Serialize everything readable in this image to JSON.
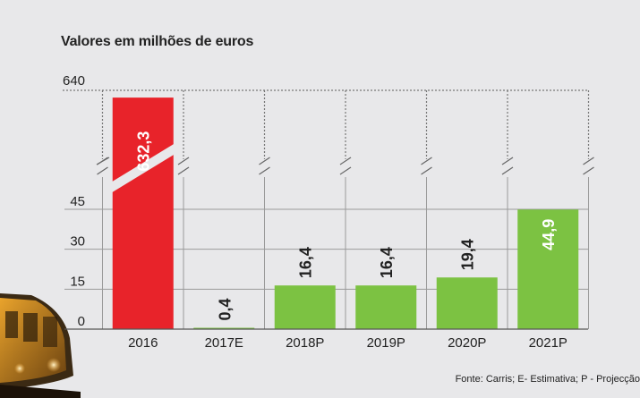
{
  "chart_data": {
    "type": "bar",
    "title": "Valores em milhões de euros",
    "categories": [
      "2016",
      "2017E",
      "2018P",
      "2019P",
      "2020P",
      "2021P"
    ],
    "values": [
      632.3,
      0.4,
      16.4,
      16.4,
      19.4,
      44.9
    ],
    "value_labels": [
      "632,3",
      "0,4",
      "16,4",
      "16,4",
      "19,4",
      "44,9"
    ],
    "bar_colors": [
      "#e8232a",
      "#7cc242",
      "#7cc242",
      "#7cc242",
      "#7cc242",
      "#7cc242"
    ],
    "label_colors": [
      "#ffffff",
      "#222222",
      "#222222",
      "#222222",
      "#222222",
      "#ffffff"
    ],
    "label_inside": [
      true,
      false,
      false,
      false,
      false,
      true
    ],
    "y_ticks": [
      0,
      15,
      30,
      45
    ],
    "y_ticks_labels": [
      "0",
      "15",
      "30",
      "45"
    ],
    "y_top_label": "640",
    "ylim": [
      0,
      45
    ],
    "axis_break": true,
    "grid": true,
    "source": "Fonte: Carris; E- Estimativa; P - Projecção"
  }
}
